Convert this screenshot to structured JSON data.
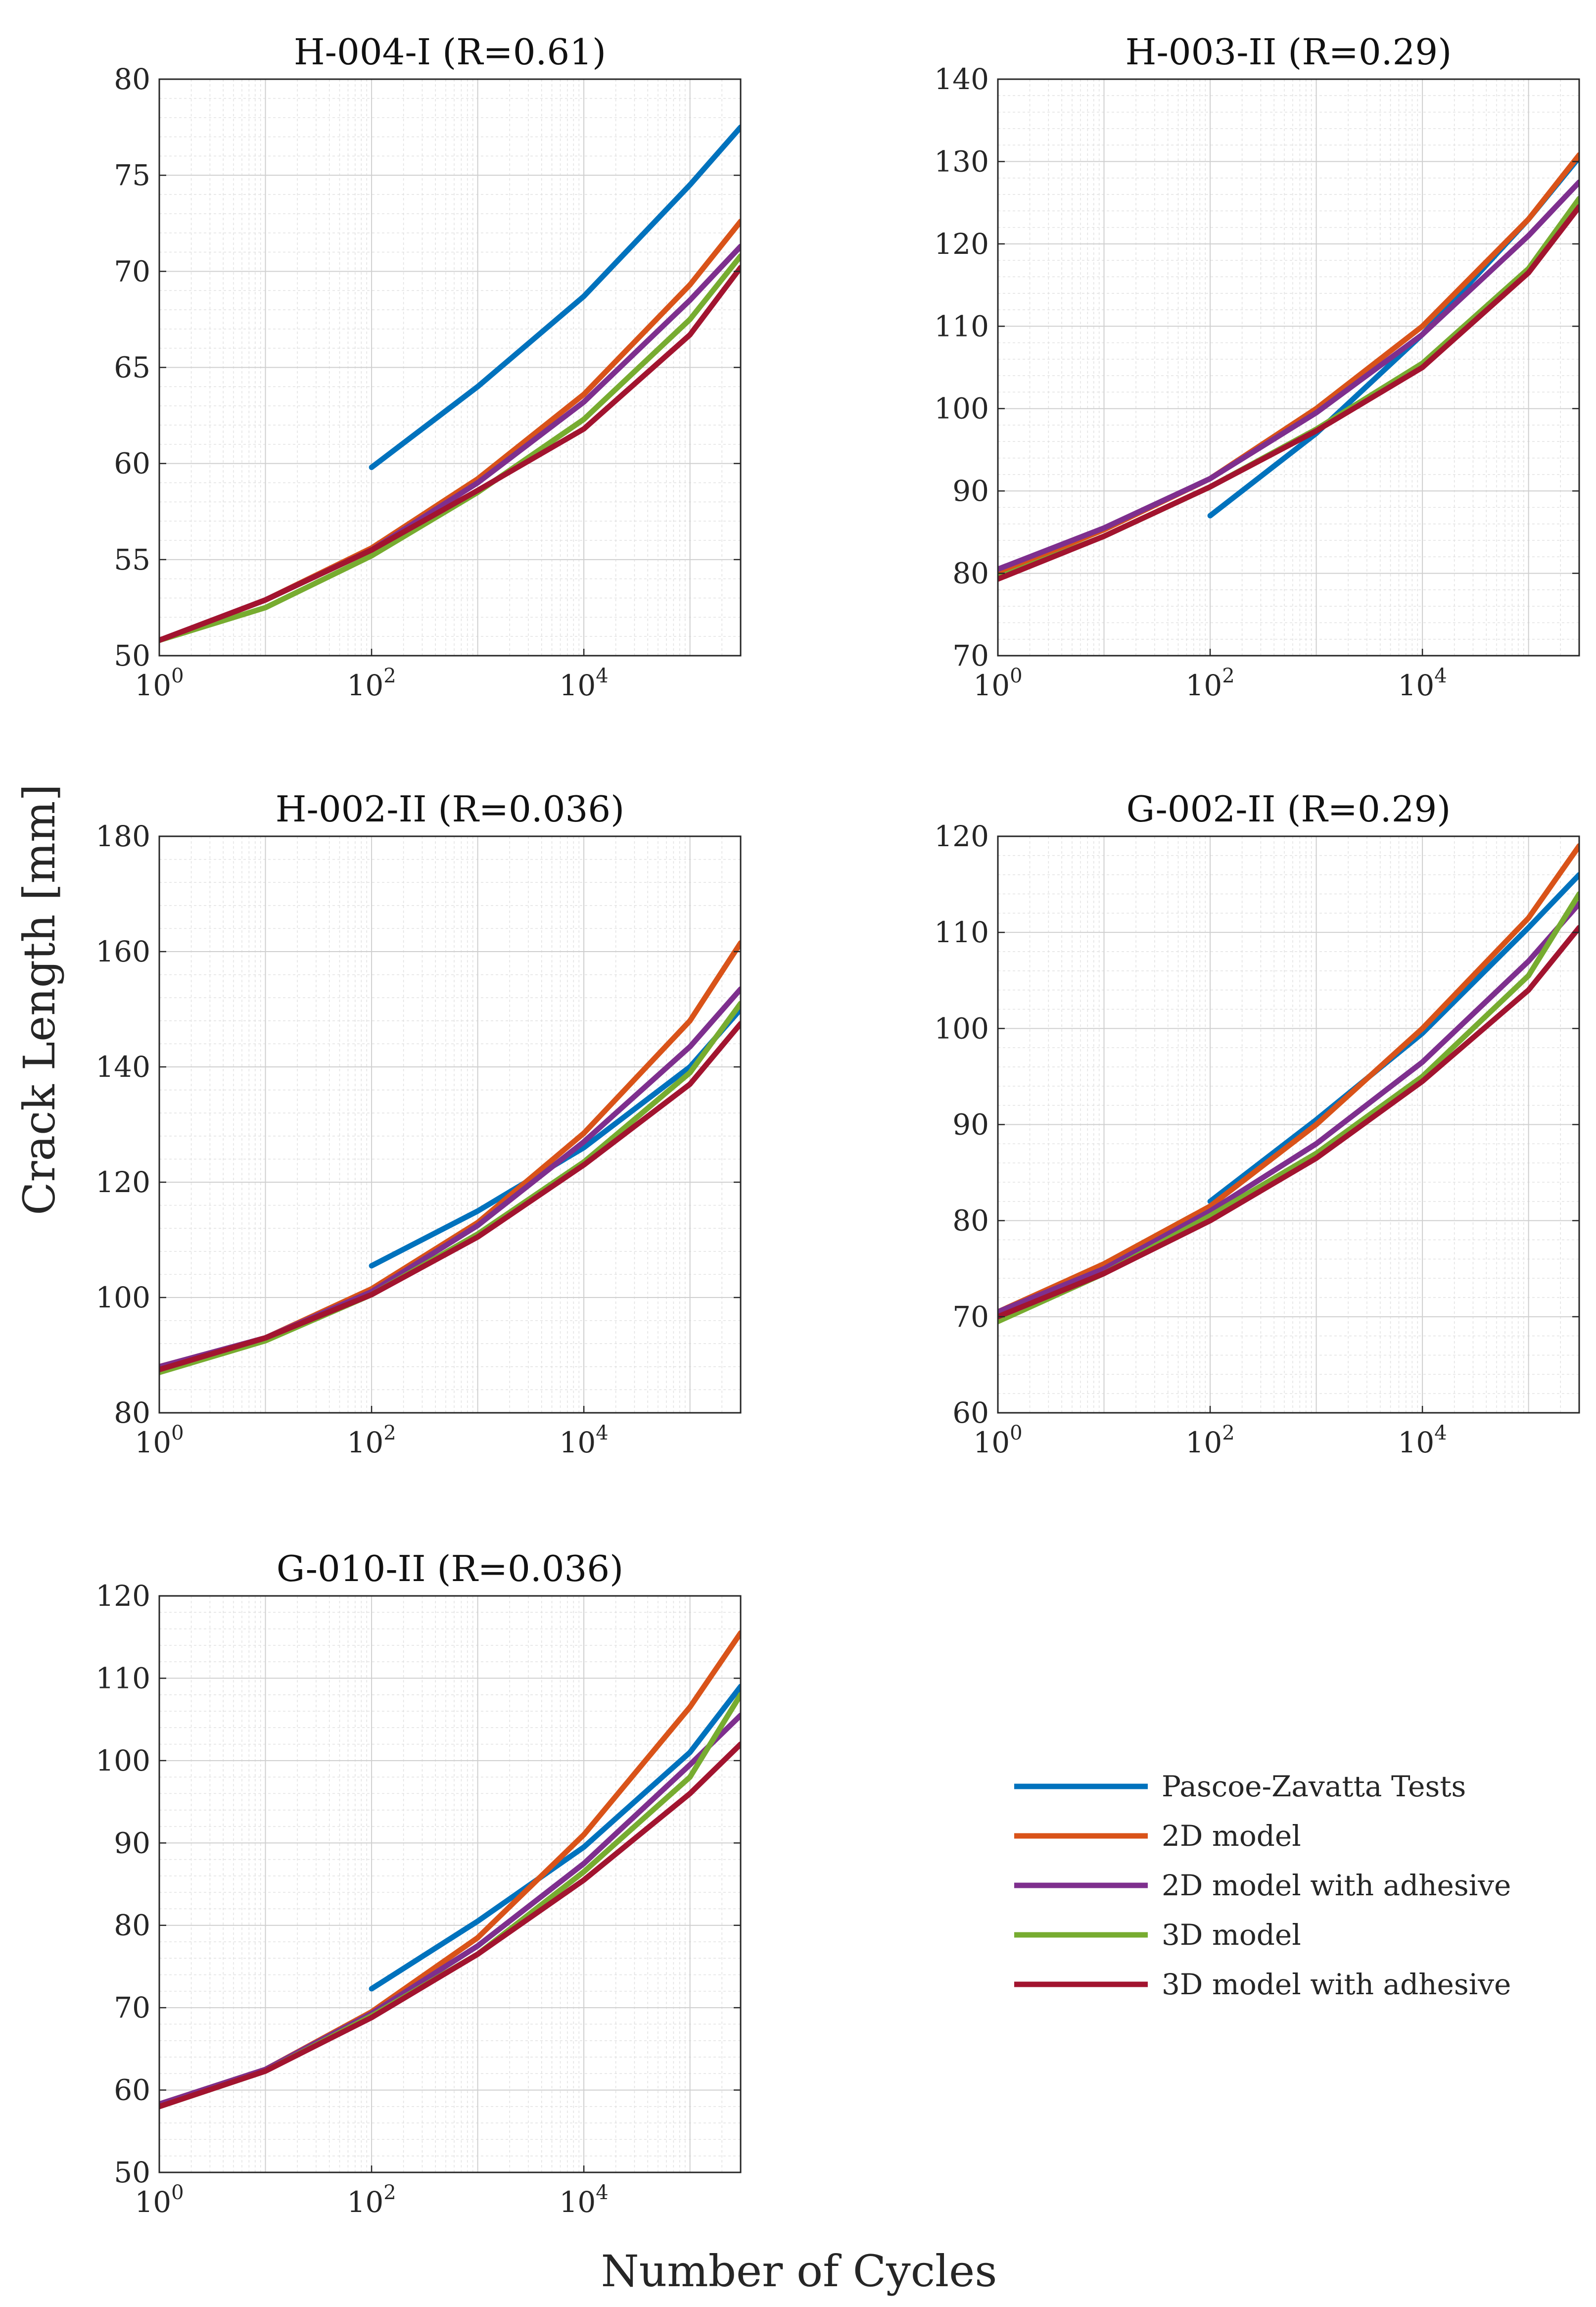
{
  "figure": {
    "xlabel": "Number of Cycles",
    "ylabel": "Crack Length [mm]"
  },
  "legend": {
    "placement": "right of bottom-left panel",
    "entries": [
      {
        "label": "Pascoe-Zavatta Tests",
        "color": "#0072BD"
      },
      {
        "label": "2D model",
        "color": "#D95319"
      },
      {
        "label": "2D model with adhesive",
        "color": "#7E2F8E"
      },
      {
        "label": "3D model",
        "color": "#77AC30"
      },
      {
        "label": "3D model with adhesive",
        "color": "#A2142F"
      }
    ]
  },
  "chart_data": [
    {
      "type": "line",
      "title": "H-004-I (R=0.61)",
      "xscale": "log",
      "xlim": [
        1,
        300000
      ],
      "ylim": [
        50,
        80
      ],
      "xticks": [
        1,
        100,
        10000
      ],
      "xtick_labels": [
        {
          "base": "10",
          "exp": "0"
        },
        {
          "base": "10",
          "exp": "2"
        },
        {
          "base": "10",
          "exp": "4"
        }
      ],
      "yticks": [
        50,
        55,
        60,
        65,
        70,
        75,
        80
      ],
      "grid": true,
      "series": [
        {
          "name": "Pascoe-Zavatta Tests",
          "color": "#0072BD",
          "x": [
            100,
            1000,
            10000,
            100000,
            300000
          ],
          "y": [
            59.8,
            64.0,
            68.7,
            74.5,
            77.5
          ]
        },
        {
          "name": "2D model",
          "color": "#D95319",
          "x": [
            1,
            10,
            100,
            1000,
            10000,
            100000,
            300000
          ],
          "y": [
            50.8,
            52.9,
            55.6,
            59.2,
            63.6,
            69.3,
            72.6
          ]
        },
        {
          "name": "2D model with adhesive",
          "color": "#7E2F8E",
          "x": [
            1,
            10,
            100,
            1000,
            10000,
            100000,
            300000
          ],
          "y": [
            50.8,
            52.9,
            55.5,
            59.0,
            63.2,
            68.5,
            71.3
          ]
        },
        {
          "name": "3D model",
          "color": "#77AC30",
          "x": [
            1,
            10,
            100,
            1000,
            10000,
            100000,
            300000
          ],
          "y": [
            50.8,
            52.5,
            55.2,
            58.5,
            62.3,
            67.5,
            70.8
          ]
        },
        {
          "name": "3D model with adhesive",
          "color": "#A2142F",
          "x": [
            1,
            10,
            100,
            1000,
            10000,
            100000,
            300000
          ],
          "y": [
            50.8,
            52.9,
            55.5,
            58.6,
            61.8,
            66.7,
            70.2
          ]
        }
      ]
    },
    {
      "type": "line",
      "title": "H-003-II (R=0.29)",
      "xscale": "log",
      "xlim": [
        1,
        300000
      ],
      "ylim": [
        70,
        140
      ],
      "xticks": [
        1,
        100,
        10000
      ],
      "xtick_labels": [
        {
          "base": "10",
          "exp": "0"
        },
        {
          "base": "10",
          "exp": "2"
        },
        {
          "base": "10",
          "exp": "4"
        }
      ],
      "yticks": [
        70,
        80,
        90,
        100,
        110,
        120,
        130,
        140
      ],
      "grid": true,
      "series": [
        {
          "name": "Pascoe-Zavatta Tests",
          "color": "#0072BD",
          "x": [
            100,
            1000,
            10000,
            100000,
            300000
          ],
          "y": [
            87.0,
            97.0,
            109.0,
            123.0,
            130.5
          ]
        },
        {
          "name": "2D model",
          "color": "#D95319",
          "x": [
            1,
            10,
            100,
            1000,
            10000,
            100000,
            300000
          ],
          "y": [
            80.0,
            85.3,
            91.5,
            100.0,
            110.0,
            123.0,
            130.8
          ]
        },
        {
          "name": "2D model with adhesive",
          "color": "#7E2F8E",
          "x": [
            1,
            10,
            100,
            1000,
            10000,
            100000,
            300000
          ],
          "y": [
            80.5,
            85.5,
            91.5,
            99.5,
            109.0,
            121.0,
            127.5
          ]
        },
        {
          "name": "3D model",
          "color": "#77AC30",
          "x": [
            1,
            10,
            100,
            1000,
            10000,
            100000,
            300000
          ],
          "y": [
            79.5,
            84.5,
            90.5,
            97.5,
            105.5,
            117.0,
            125.5
          ]
        },
        {
          "name": "3D model with adhesive",
          "color": "#A2142F",
          "x": [
            1,
            10,
            100,
            1000,
            10000,
            100000,
            300000
          ],
          "y": [
            79.3,
            84.5,
            90.5,
            97.3,
            105.0,
            116.5,
            124.5
          ]
        }
      ]
    },
    {
      "type": "line",
      "title": "H-002-II (R=0.036)",
      "xscale": "log",
      "xlim": [
        1,
        300000
      ],
      "ylim": [
        80,
        180
      ],
      "xticks": [
        1,
        100,
        10000
      ],
      "xtick_labels": [
        {
          "base": "10",
          "exp": "0"
        },
        {
          "base": "10",
          "exp": "2"
        },
        {
          "base": "10",
          "exp": "4"
        }
      ],
      "yticks": [
        80,
        100,
        120,
        140,
        160,
        180
      ],
      "grid": true,
      "series": [
        {
          "name": "Pascoe-Zavatta Tests",
          "color": "#0072BD",
          "x": [
            100,
            1000,
            10000,
            100000,
            300000
          ],
          "y": [
            105.5,
            115.0,
            126.0,
            140.0,
            150.0
          ]
        },
        {
          "name": "2D model",
          "color": "#D95319",
          "x": [
            1,
            10,
            100,
            1000,
            10000,
            100000,
            300000
          ],
          "y": [
            88.0,
            93.0,
            101.5,
            113.0,
            128.5,
            148.0,
            161.5
          ]
        },
        {
          "name": "2D model with adhesive",
          "color": "#7E2F8E",
          "x": [
            1,
            10,
            100,
            1000,
            10000,
            100000,
            300000
          ],
          "y": [
            88.0,
            93.0,
            101.0,
            112.5,
            127.0,
            143.5,
            153.5
          ]
        },
        {
          "name": "3D model",
          "color": "#77AC30",
          "x": [
            1,
            10,
            100,
            1000,
            10000,
            100000,
            300000
          ],
          "y": [
            87.0,
            92.5,
            100.5,
            111.0,
            123.5,
            139.0,
            151.0
          ]
        },
        {
          "name": "3D model with adhesive",
          "color": "#A2142F",
          "x": [
            1,
            10,
            100,
            1000,
            10000,
            100000,
            300000
          ],
          "y": [
            87.5,
            93.0,
            100.5,
            110.5,
            123.0,
            137.0,
            147.5
          ]
        }
      ]
    },
    {
      "type": "line",
      "title": "G-002-II (R=0.29)",
      "xscale": "log",
      "xlim": [
        1,
        300000
      ],
      "ylim": [
        60,
        120
      ],
      "xticks": [
        1,
        100,
        10000
      ],
      "xtick_labels": [
        {
          "base": "10",
          "exp": "0"
        },
        {
          "base": "10",
          "exp": "2"
        },
        {
          "base": "10",
          "exp": "4"
        }
      ],
      "yticks": [
        60,
        70,
        80,
        90,
        100,
        110,
        120
      ],
      "grid": true,
      "series": [
        {
          "name": "Pascoe-Zavatta Tests",
          "color": "#0072BD",
          "x": [
            100,
            1000,
            10000,
            100000,
            300000
          ],
          "y": [
            82.0,
            90.5,
            99.5,
            110.5,
            116.0
          ]
        },
        {
          "name": "2D model",
          "color": "#D95319",
          "x": [
            1,
            10,
            100,
            1000,
            10000,
            100000,
            300000
          ],
          "y": [
            70.5,
            75.5,
            81.5,
            90.0,
            100.0,
            111.5,
            119.0
          ]
        },
        {
          "name": "2D model with adhesive",
          "color": "#7E2F8E",
          "x": [
            1,
            10,
            100,
            1000,
            10000,
            100000,
            300000
          ],
          "y": [
            70.5,
            75.0,
            81.0,
            88.0,
            96.5,
            107.0,
            113.0
          ]
        },
        {
          "name": "3D model",
          "color": "#77AC30",
          "x": [
            1,
            10,
            100,
            1000,
            10000,
            100000,
            300000
          ],
          "y": [
            69.5,
            74.5,
            80.5,
            87.0,
            95.0,
            105.5,
            114.0
          ]
        },
        {
          "name": "3D model with adhesive",
          "color": "#A2142F",
          "x": [
            1,
            10,
            100,
            1000,
            10000,
            100000,
            300000
          ],
          "y": [
            70.0,
            74.5,
            80.0,
            86.5,
            94.5,
            104.0,
            110.5
          ]
        }
      ]
    },
    {
      "type": "line",
      "title": "G-010-II (R=0.036)",
      "xscale": "log",
      "xlim": [
        1,
        300000
      ],
      "ylim": [
        50,
        120
      ],
      "xticks": [
        1,
        100,
        10000
      ],
      "xtick_labels": [
        {
          "base": "10",
          "exp": "0"
        },
        {
          "base": "10",
          "exp": "2"
        },
        {
          "base": "10",
          "exp": "4"
        }
      ],
      "yticks": [
        50,
        60,
        70,
        80,
        90,
        100,
        110,
        120
      ],
      "grid": true,
      "series": [
        {
          "name": "Pascoe-Zavatta Tests",
          "color": "#0072BD",
          "x": [
            100,
            1000,
            10000,
            100000,
            300000
          ],
          "y": [
            72.3,
            80.5,
            89.5,
            101.0,
            109.0
          ]
        },
        {
          "name": "2D model",
          "color": "#D95319",
          "x": [
            1,
            10,
            100,
            1000,
            10000,
            100000,
            300000
          ],
          "y": [
            58.3,
            62.5,
            69.5,
            78.5,
            91.0,
            106.5,
            115.5
          ]
        },
        {
          "name": "2D model with adhesive",
          "color": "#7E2F8E",
          "x": [
            1,
            10,
            100,
            1000,
            10000,
            100000,
            300000
          ],
          "y": [
            58.3,
            62.5,
            69.3,
            77.5,
            87.5,
            99.5,
            105.5
          ]
        },
        {
          "name": "3D model",
          "color": "#77AC30",
          "x": [
            1,
            10,
            100,
            1000,
            10000,
            100000,
            300000
          ],
          "y": [
            58.0,
            62.3,
            69.0,
            76.5,
            86.5,
            98.0,
            108.0
          ]
        },
        {
          "name": "3D model with adhesive",
          "color": "#A2142F",
          "x": [
            1,
            10,
            100,
            1000,
            10000,
            100000,
            300000
          ],
          "y": [
            58.0,
            62.3,
            68.8,
            76.5,
            85.5,
            96.0,
            102.0
          ]
        }
      ]
    }
  ]
}
